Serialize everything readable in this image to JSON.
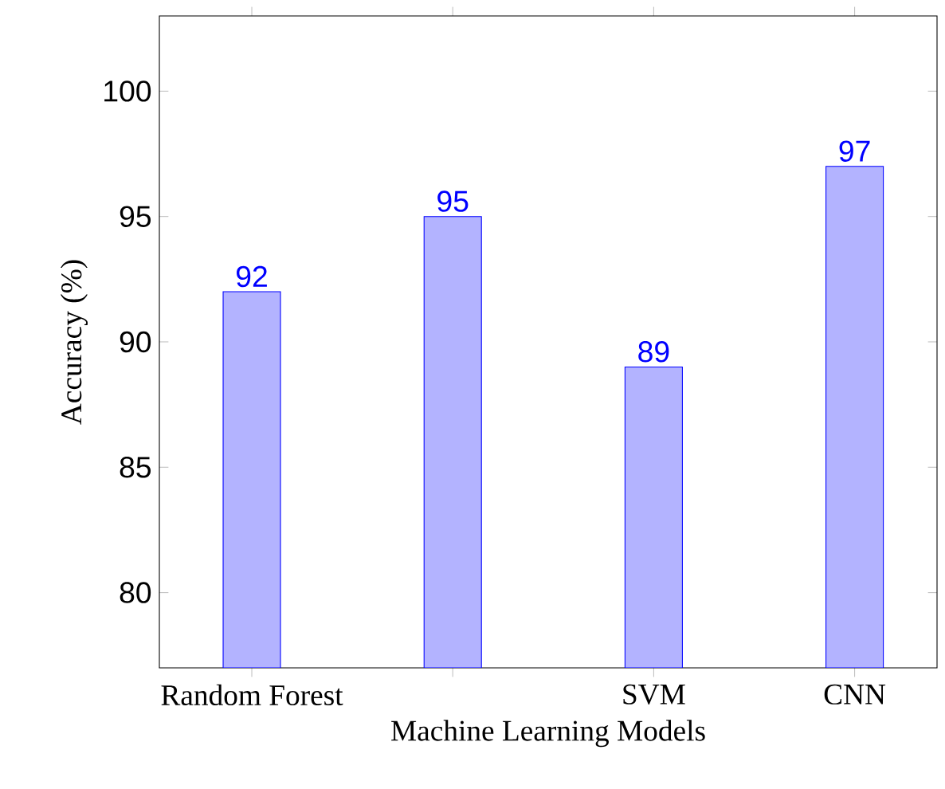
{
  "chart_data": {
    "type": "bar",
    "xlabel": "Machine Learning Models",
    "ylabel": "Accuracy (%)",
    "categories": [
      "Random Forest",
      null,
      "SVM",
      "CNN"
    ],
    "values": [
      92,
      95,
      89,
      97
    ],
    "color": "#b3b3ff",
    "ylim": [
      77,
      103
    ],
    "yticks": [
      80,
      85,
      90,
      95,
      100
    ],
    "data_labels": true
  }
}
